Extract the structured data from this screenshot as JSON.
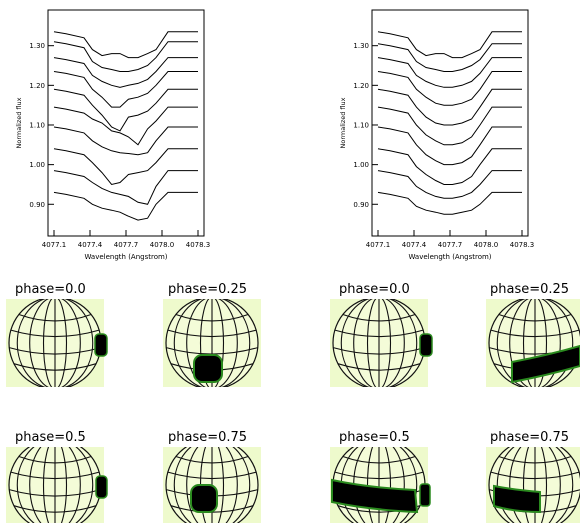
{
  "chart_data": [
    {
      "type": "line",
      "panel": "left",
      "xlabel": "Wavelength (Angstrom)",
      "ylabel": "Normalized flux",
      "xlim": [
        4077.05,
        4078.35
      ],
      "ylim": [
        0.82,
        1.39
      ],
      "xticks": [
        4077.1,
        4077.4,
        4077.7,
        4078.0,
        4078.3
      ],
      "xtick_labels": [
        "4077.1",
        "4077.4",
        "4077.7",
        "4078.0",
        "4078.3"
      ],
      "yticks": [
        0.9,
        1.0,
        1.1,
        1.2,
        1.3
      ],
      "ytick_labels": [
        "0.90",
        "1.00",
        "1.10",
        "1.20",
        "1.30"
      ],
      "x": [
        4077.1,
        4077.2,
        4077.35,
        4077.42,
        4077.5,
        4077.58,
        4077.65,
        4077.72,
        4077.8,
        4077.88,
        4077.95,
        4078.05,
        4078.3
      ],
      "series": [
        {
          "values": [
            1.335,
            1.33,
            1.32,
            1.29,
            1.275,
            1.28,
            1.28,
            1.27,
            1.27,
            1.28,
            1.29,
            1.335,
            1.335
          ]
        },
        {
          "values": [
            1.31,
            1.305,
            1.295,
            1.26,
            1.245,
            1.24,
            1.235,
            1.235,
            1.24,
            1.25,
            1.27,
            1.31,
            1.31
          ]
        },
        {
          "values": [
            1.27,
            1.265,
            1.255,
            1.225,
            1.21,
            1.2,
            1.195,
            1.2,
            1.205,
            1.215,
            1.235,
            1.27,
            1.27
          ]
        },
        {
          "values": [
            1.235,
            1.23,
            1.22,
            1.19,
            1.17,
            1.145,
            1.145,
            1.165,
            1.17,
            1.18,
            1.2,
            1.235,
            1.235
          ]
        },
        {
          "values": [
            1.19,
            1.185,
            1.175,
            1.15,
            1.125,
            1.095,
            1.085,
            1.12,
            1.125,
            1.135,
            1.155,
            1.19,
            1.19
          ]
        },
        {
          "values": [
            1.145,
            1.14,
            1.13,
            1.115,
            1.105,
            1.085,
            1.08,
            1.07,
            1.05,
            1.09,
            1.11,
            1.145,
            1.145
          ]
        },
        {
          "values": [
            1.095,
            1.09,
            1.08,
            1.06,
            1.045,
            1.035,
            1.03,
            1.028,
            1.025,
            1.03,
            1.06,
            1.095,
            1.095
          ]
        },
        {
          "values": [
            1.04,
            1.035,
            1.025,
            1.005,
            0.98,
            0.95,
            0.955,
            0.975,
            0.98,
            0.985,
            1.005,
            1.04,
            1.04
          ]
        },
        {
          "values": [
            0.985,
            0.98,
            0.97,
            0.955,
            0.94,
            0.93,
            0.925,
            0.92,
            0.905,
            0.9,
            0.945,
            0.985,
            0.985
          ]
        },
        {
          "values": [
            0.93,
            0.925,
            0.915,
            0.9,
            0.89,
            0.885,
            0.88,
            0.87,
            0.86,
            0.865,
            0.9,
            0.93,
            0.93
          ]
        }
      ]
    },
    {
      "type": "line",
      "panel": "right",
      "xlabel": "Wavelength (Angstrom)",
      "ylabel": "Normalized flux",
      "xlim": [
        4077.05,
        4078.35
      ],
      "ylim": [
        0.82,
        1.39
      ],
      "xticks": [
        4077.1,
        4077.4,
        4077.7,
        4078.0,
        4078.3
      ],
      "xtick_labels": [
        "4077.1",
        "4077.4",
        "4077.7",
        "4078.0",
        "4078.3"
      ],
      "yticks": [
        0.9,
        1.0,
        1.1,
        1.2,
        1.3
      ],
      "ytick_labels": [
        "0.90",
        "1.00",
        "1.10",
        "1.20",
        "1.30"
      ],
      "x": [
        4077.1,
        4077.2,
        4077.35,
        4077.42,
        4077.5,
        4077.58,
        4077.65,
        4077.72,
        4077.8,
        4077.88,
        4077.95,
        4078.05,
        4078.3
      ],
      "series": [
        {
          "values": [
            1.335,
            1.33,
            1.32,
            1.29,
            1.275,
            1.28,
            1.28,
            1.27,
            1.27,
            1.28,
            1.29,
            1.335,
            1.335
          ]
        },
        {
          "values": [
            1.305,
            1.3,
            1.29,
            1.26,
            1.245,
            1.24,
            1.235,
            1.235,
            1.24,
            1.25,
            1.265,
            1.305,
            1.305
          ]
        },
        {
          "values": [
            1.27,
            1.265,
            1.255,
            1.225,
            1.21,
            1.2,
            1.195,
            1.195,
            1.2,
            1.21,
            1.23,
            1.27,
            1.27
          ]
        },
        {
          "values": [
            1.235,
            1.23,
            1.22,
            1.19,
            1.17,
            1.155,
            1.15,
            1.15,
            1.155,
            1.165,
            1.19,
            1.235,
            1.235
          ]
        },
        {
          "values": [
            1.19,
            1.185,
            1.175,
            1.145,
            1.12,
            1.105,
            1.1,
            1.1,
            1.105,
            1.115,
            1.145,
            1.19,
            1.19
          ]
        },
        {
          "values": [
            1.145,
            1.14,
            1.13,
            1.1,
            1.075,
            1.06,
            1.05,
            1.05,
            1.055,
            1.07,
            1.1,
            1.145,
            1.145
          ]
        },
        {
          "values": [
            1.095,
            1.09,
            1.08,
            1.05,
            1.025,
            1.01,
            1.0,
            1.0,
            1.005,
            1.02,
            1.05,
            1.095,
            1.095
          ]
        },
        {
          "values": [
            1.04,
            1.035,
            1.025,
            0.995,
            0.975,
            0.96,
            0.95,
            0.95,
            0.955,
            0.97,
            1.0,
            1.04,
            1.04
          ]
        },
        {
          "values": [
            0.985,
            0.98,
            0.97,
            0.945,
            0.93,
            0.92,
            0.915,
            0.915,
            0.92,
            0.93,
            0.95,
            0.985,
            0.985
          ]
        },
        {
          "values": [
            0.93,
            0.925,
            0.915,
            0.895,
            0.885,
            0.88,
            0.875,
            0.875,
            0.88,
            0.885,
            0.9,
            0.93,
            0.93
          ]
        }
      ]
    }
  ],
  "globe_panels": {
    "background_color": "#eefacc",
    "globe_fill": "#f4fcd8",
    "grid_color": "#111111",
    "spot_color": "#000000",
    "spot_glow": "#2a8a1e",
    "titles": [
      "phase=0.0",
      "phase=0.25",
      "phase=0.0",
      "phase=0.25",
      "phase=0.5",
      "phase=0.75",
      "phase=0.5",
      "phase=0.75"
    ]
  }
}
